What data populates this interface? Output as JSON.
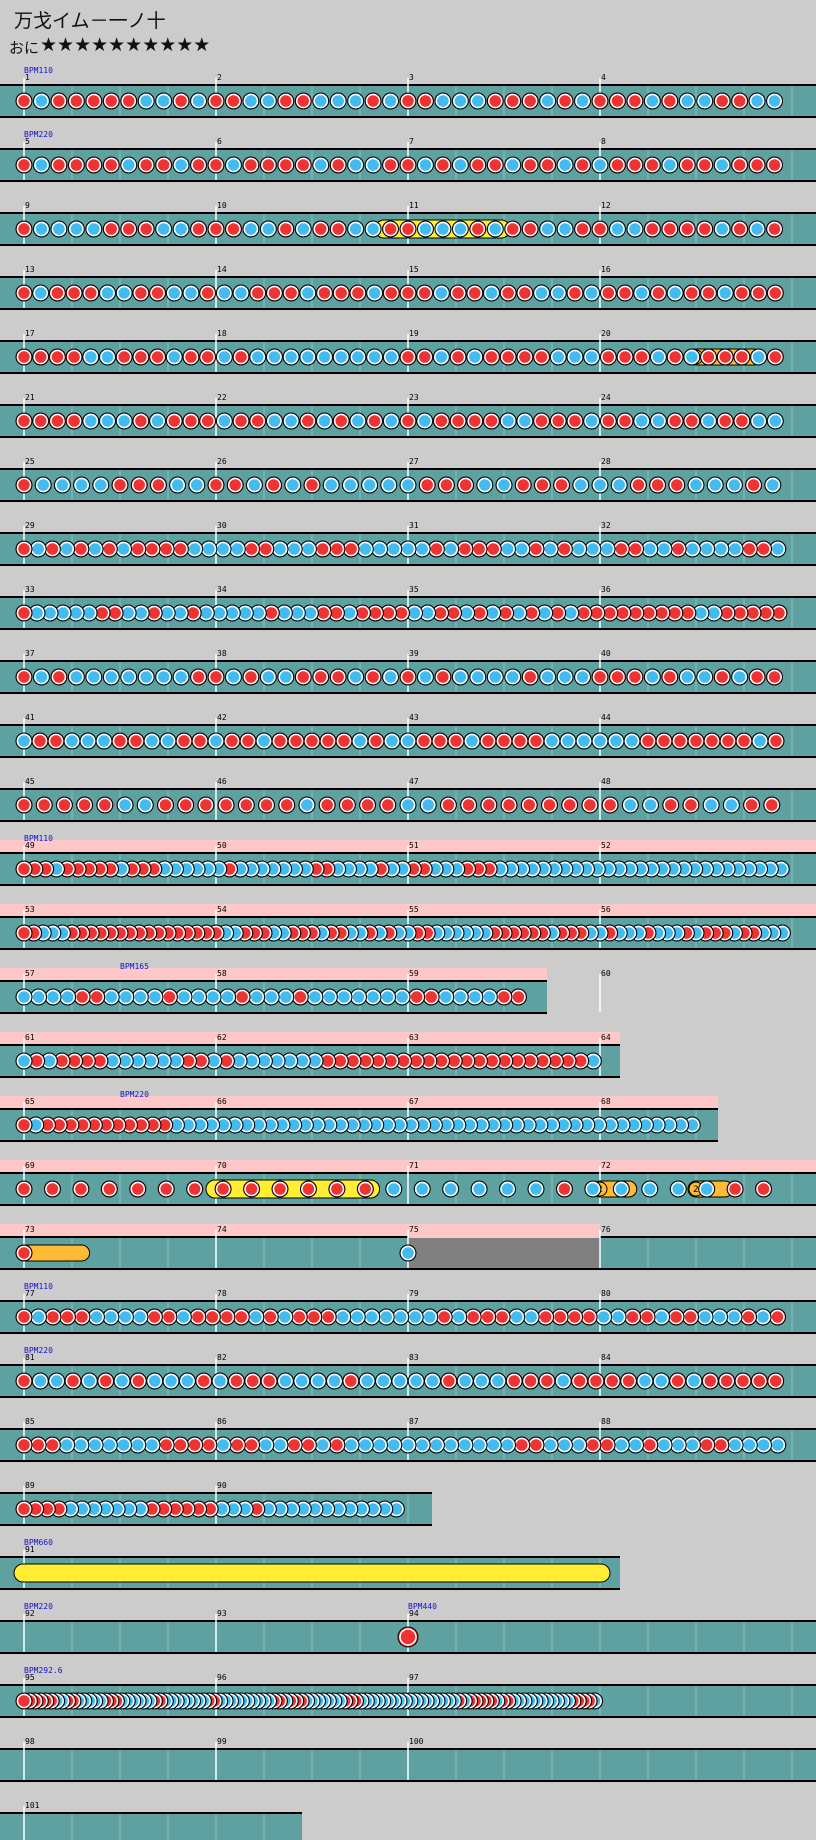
{
  "song_title": "万戈イム－一ノ十",
  "difficulty": "おに",
  "stars": "★★★★★★★★★★",
  "colors": {
    "background": "#cccccc",
    "lane": "#5fa0a0",
    "go_go": "#ffc8c8",
    "don": "#ee3333",
    "ka": "#44bbee",
    "drumroll": "#ffee33",
    "balloon": "#ffbb33",
    "bpm_text": "#1111cc",
    "gray_section": "#808080"
  },
  "rows": [
    {
      "measures": [
        "1",
        "2",
        "3",
        "4"
      ],
      "bpm": "BPM110",
      "pattern": "rbrrrrrbbrbrrbbrrbbbrbrrbbbrrrbrbrrrbrbbrrbb"
    },
    {
      "measures": [
        "5",
        "6",
        "7",
        "8"
      ],
      "bpm": "BPM220",
      "pattern": "rbrrrrbrrbrrbrrrrbrbbrrbrbrrbrrbrbrrrbrrbrrr"
    },
    {
      "measures": [
        "9",
        "10",
        "11",
        "12"
      ],
      "pattern": "rbbbbrrrbbrrrbbrbrrbbrrbbbrbrrbbrrbbrrrrbrbr",
      "drumroll": [
        [
          1.88,
          2.48
        ]
      ]
    },
    {
      "measures": [
        "13",
        "14",
        "15",
        "16"
      ],
      "pattern": "rbrrrbbrrbbrbbrrrbrrrbrrrbrrbrrbbrbrrbrbrrbrrr"
    },
    {
      "measures": [
        "17",
        "18",
        "19",
        "20"
      ],
      "pattern": "rrrrbbrrrbrrbrbbbbbbbbbrrbrbrrrrbbbrrrbrbrrrbr",
      "balloons": [
        {
          "start": 3.5,
          "end": 3.8,
          "count": "3"
        }
      ]
    },
    {
      "measures": [
        "21",
        "22",
        "23",
        "24"
      ],
      "pattern": "rrrrbbbrbrrrbrrbbrbrbrbrbrrrrbbrrrbrrbbrrbrrbb"
    },
    {
      "measures": [
        "25",
        "26",
        "27",
        "28"
      ],
      "pattern": "rbbbbrrrbbrrbrbrbbbbbrrrbbrrrbbbrrrbbbrb"
    },
    {
      "measures": [
        "29",
        "30",
        "31",
        "32"
      ],
      "pattern": "rbrbrbrbrrrrbbbbrrbbbrrrbbbbbrbrrrbbrbrbbbrrbbrbbbbrrb"
    },
    {
      "measures": [
        "33",
        "34",
        "35",
        "36"
      ],
      "pattern": "rbbbbbrrbbrbbrbbbbbrbbbrrbrrrrbbrrbrbrbrbrbrrrrrrrrrbbrrrrr"
    },
    {
      "measures": [
        "37",
        "38",
        "39",
        "40"
      ],
      "pattern": "rbrbbbbbbbrrbrbbrrrbrbrbrbbbbrbbbrrrbrbbrbrr"
    },
    {
      "measures": [
        "41",
        "42",
        "43",
        "44"
      ],
      "pattern": "brrbbbrrbbrrbrrbrrrrrbrbbrrrbrrrrbbbbbbrrrrrrrbr"
    },
    {
      "measures": [
        "45",
        "46",
        "47",
        "48"
      ],
      "pattern": "rrrrrbbrrrrrrrbrrrrbbrrrrrrrrrbbrrbbrr"
    },
    {
      "measures": [
        "49",
        "50",
        "51",
        "52"
      ],
      "bpm": "BPM110",
      "gogo": true,
      "pattern": "rrrbrrrrrbrrrbbbbbbrbbbbbbbrrbbbbrbbrrbbbrrrbbbbbbbbbbbbbbbbbbbbbbbbbbb"
    },
    {
      "measures": [
        "53",
        "54",
        "55",
        "56"
      ],
      "gogo": true,
      "pattern": "rrbbbrrrrrrrrrrrrrrrrbbrrrbbrrrbrrbbrbrbbrrbbbbbbrrrrrrbrrrbbrbbbrbbbrbrrrbrrbbb"
    },
    {
      "measures": [
        "57",
        "58",
        "59",
        "60"
      ],
      "width_fraction": 0.67,
      "bpm_mid": "BPM165",
      "gogo": true,
      "pattern": "bbbbrrbbbbrbbbbrbbbrbbbbbbbrrbbbbrr"
    },
    {
      "measures": [
        "61",
        "62",
        "63",
        "64"
      ],
      "width_fraction": 0.76,
      "gogo": true,
      "pattern": "brbrrrrbbbbbbrrbrbbbbbbbrrrrrrrrrrrrrrrrrrrrrb"
    },
    {
      "measures": [
        "65",
        "66",
        "67",
        "68"
      ],
      "width_fraction": 0.88,
      "bpm_mid": "BPM220",
      "gogo": true,
      "pattern": "rbrrrrrrrrrrrbbbbbbbbbbbbbbbbbbbbbbbbbbbbbbbbbbbbbbbbbbbbb"
    },
    {
      "measures": [
        "69",
        "70",
        "71",
        "72"
      ],
      "gogo": true,
      "pattern": "rrrrrrrrrrrrrbbbbbbrbbbbbrr",
      "drumroll": [
        [
          1.0,
          1.8
        ]
      ],
      "balloons": [
        {
          "start": 3.0,
          "end": 3.15,
          "count": "2"
        },
        {
          "start": 3.5,
          "end": 3.65,
          "count": "2"
        }
      ]
    },
    {
      "measures": [
        "73",
        "74",
        "75",
        "76"
      ],
      "gogo_partial": 0.5,
      "pattern": "rb",
      "balloons": [
        {
          "start": 0.0,
          "end": 0.3,
          "count": "3"
        }
      ],
      "gray": [
        2.0,
        3.0
      ]
    },
    {
      "measures": [
        "77",
        "78",
        "79",
        "80"
      ],
      "bpm": "BPM110",
      "pattern": "rbrrrbbbbrrbrrrrbrbrrrbbbbbbbrbrrrbbrrrrbbrrbrrbbbrbr"
    },
    {
      "measures": [
        "81",
        "82",
        "83",
        "84"
      ],
      "bpm": "BPM220",
      "pattern": "rbbrbrbrbbbrbrrrbbbbrbbbbbrbbbrrrbrrrrbbrbrrrrr"
    },
    {
      "measures": [
        "85",
        "86",
        "87",
        "88"
      ],
      "pattern": "rrrbbbbbbbrrrrbrrbbrrbrbbbbbbbbbbbbrrbbbrrbbrbbbrrbbbb"
    },
    {
      "measures": [
        "89",
        "90"
      ],
      "width_fraction": 0.53,
      "pattern": "rrrrbbbbbbbrrrrrrbbbrbbbbbbbbbbbb"
    },
    {
      "measures": [
        "91"
      ],
      "width_fraction": 0.76,
      "bpm": "BPM660",
      "pattern": "",
      "drumroll": [
        [
          0.0,
          3.0
        ]
      ]
    },
    {
      "measures": [
        "92",
        "93",
        "94"
      ],
      "bpm": "BPM220",
      "bpm_mid": "BPM440",
      "pattern": "",
      "single_don": 2.0
    },
    {
      "measures": [
        "95",
        "96",
        "97"
      ],
      "bpm": "BPM292.6",
      "pattern": "rrrrrrbbrrbbbbbrrrbbbbbbrrbbbbbbbbrrbbbbbbbbbbrrbrrrbbbbbbbrrrbbbbbbbbbbbbbbbbbbrbrrrrrbrrbbbbbbbbbbbrrrrb"
    },
    {
      "measures": [
        "98",
        "99",
        "100"
      ],
      "pattern": ""
    },
    {
      "measures": [
        "101"
      ],
      "width_fraction": 0.37,
      "pattern": ""
    }
  ]
}
